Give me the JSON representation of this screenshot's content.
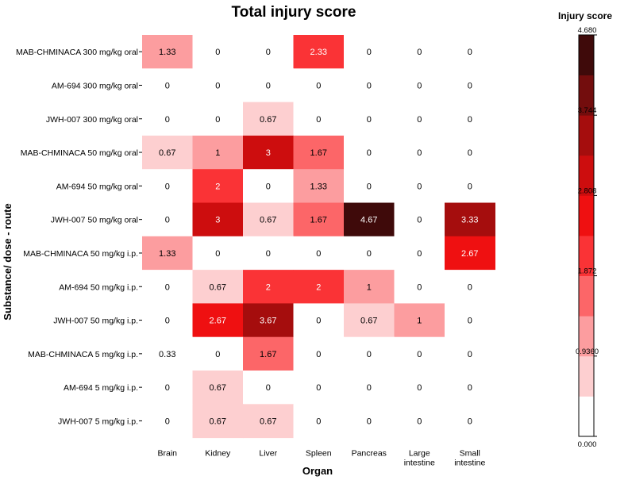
{
  "chart_data": {
    "type": "heatmap",
    "title": "Total injury score",
    "xlabel": "Organ",
    "ylabel": "Substance/ dose - route",
    "x_categories": [
      "Brain",
      "Kidney",
      "Liver",
      "Spleen",
      "Pancreas",
      "Large intestine",
      "Small intestine"
    ],
    "y_categories": [
      "MAB-CHMINACA 300 mg/kg oral",
      "AM-694 300 mg/kg oral",
      "JWH-007 300 mg/kg oral",
      "MAB-CHMINACA 50 mg/kg oral",
      "AM-694 50 mg/kg oral",
      "JWH-007 50 mg/kg oral",
      "MAB-CHMINACA 50 mg/kg i.p.",
      "AM-694 50 mg/kg i.p.",
      "JWH-007 50 mg/kg i.p.",
      "MAB-CHMINACA 5 mg/kg i.p.",
      "AM-694 5 mg/kg i.p.",
      "JWH-007 5 mg/kg i.p."
    ],
    "values": [
      [
        1.33,
        0,
        0,
        2.33,
        0,
        0,
        0
      ],
      [
        0,
        0,
        0,
        0,
        0,
        0,
        0
      ],
      [
        0,
        0,
        0.67,
        0,
        0,
        0,
        0
      ],
      [
        0.67,
        1,
        3,
        1.67,
        0,
        0,
        0
      ],
      [
        0,
        2,
        0,
        1.33,
        0,
        0,
        0
      ],
      [
        0,
        3,
        0.67,
        1.67,
        4.67,
        0,
        3.33
      ],
      [
        1.33,
        0,
        0,
        0,
        0,
        0,
        2.67
      ],
      [
        0,
        0.67,
        2,
        2,
        1,
        0,
        0
      ],
      [
        0,
        2.67,
        3.67,
        0,
        0.67,
        1,
        0
      ],
      [
        0.33,
        0,
        1.67,
        0,
        0,
        0,
        0
      ],
      [
        0,
        0.67,
        0,
        0,
        0,
        0,
        0
      ],
      [
        0,
        0.67,
        0.67,
        0,
        0,
        0,
        0
      ]
    ],
    "value_labels": [
      [
        "1.33",
        "0",
        "0",
        "2.33",
        "0",
        "0",
        "0"
      ],
      [
        "0",
        "0",
        "0",
        "0",
        "0",
        "0",
        "0"
      ],
      [
        "0",
        "0",
        "0.67",
        "0",
        "0",
        "0",
        "0"
      ],
      [
        "0.67",
        "1",
        "3",
        "1.67",
        "0",
        "0",
        "0"
      ],
      [
        "0",
        "2",
        "0",
        "1.33",
        "0",
        "0",
        "0"
      ],
      [
        "0",
        "3",
        "0.67",
        "1.67",
        "4.67",
        "0",
        "3.33"
      ],
      [
        "1.33",
        "0",
        "0",
        "0",
        "0",
        "0",
        "2.67"
      ],
      [
        "0",
        "0.67",
        "2",
        "2",
        "1",
        "0",
        "0"
      ],
      [
        "0",
        "2.67",
        "3.67",
        "0",
        "0.67",
        "1",
        "0"
      ],
      [
        "0.33",
        "0",
        "1.67",
        "0",
        "0",
        "0",
        "0"
      ],
      [
        "0",
        "0.67",
        "0",
        "0",
        "0",
        "0",
        "0"
      ],
      [
        "0",
        "0.67",
        "0.67",
        "0",
        "0",
        "0",
        "0"
      ]
    ],
    "colorbar": {
      "title": "Injury score",
      "range": [
        0,
        4.68
      ],
      "tick_values": [
        0,
        0.936,
        1.872,
        2.808,
        3.744,
        4.68
      ],
      "tick_labels": [
        "0.000",
        "0.9360",
        "1.872",
        "2.808",
        "3.744",
        "4.680"
      ],
      "bins": 10,
      "colors": [
        "#ffffff",
        "#fdcfd0",
        "#fc9d9f",
        "#fc6668",
        "#fa3336",
        "#ef1011",
        "#cd0d0e",
        "#a50d0d",
        "#730d0d",
        "#3f0a0a"
      ]
    }
  }
}
